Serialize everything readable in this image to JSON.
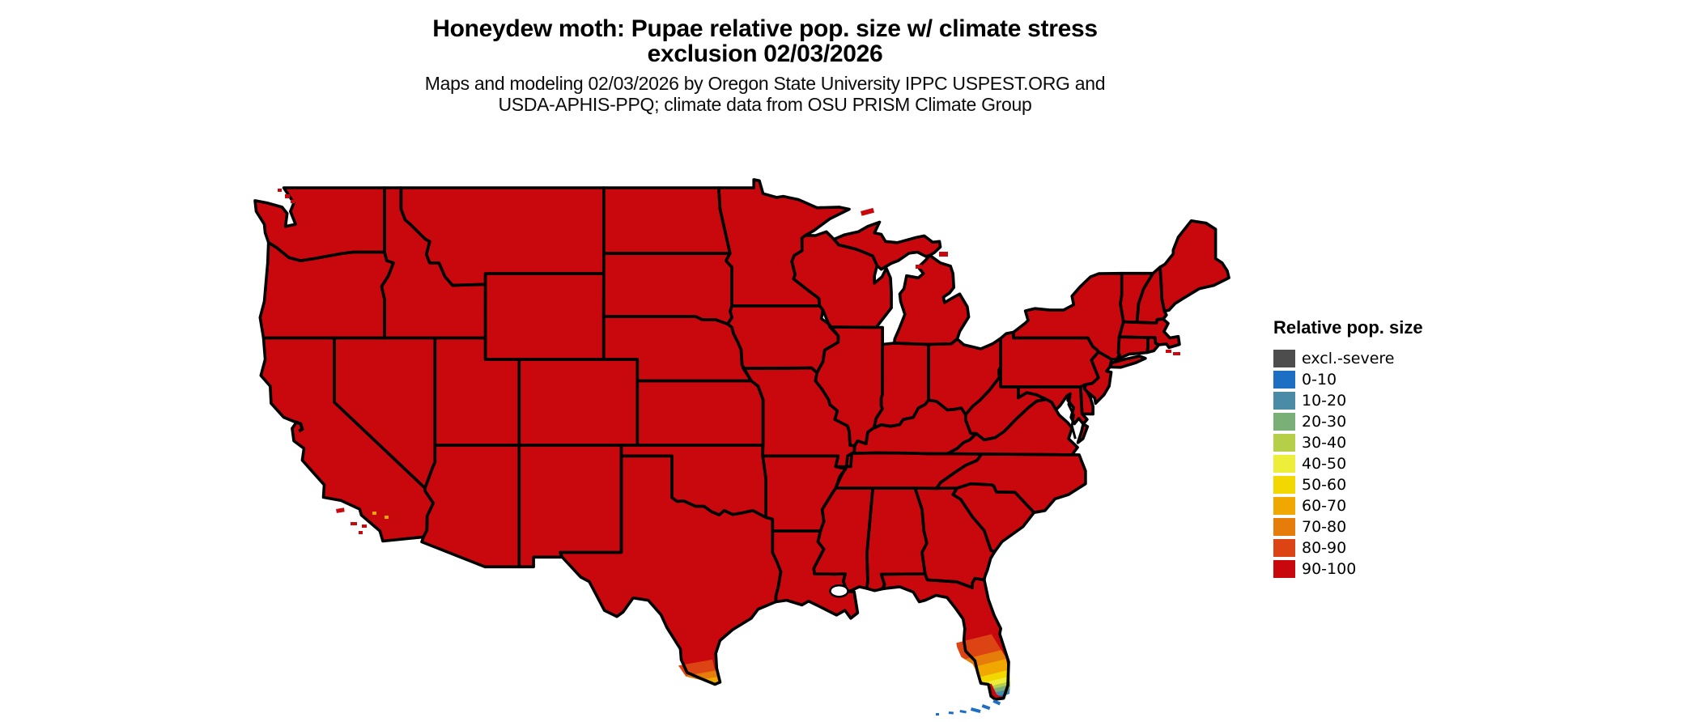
{
  "header": {
    "title_line1": "Honeydew moth: Pupae relative pop. size w/ climate stress",
    "title_line2": "exclusion 02/03/2026",
    "subtitle_line1": "Maps and modeling 02/03/2026 by Oregon State University IPPC USPEST.ORG and",
    "subtitle_line2": "USDA-APHIS-PPQ; climate data from OSU PRISM Climate Group"
  },
  "legend": {
    "title": "Relative pop. size",
    "items": [
      {
        "label": "excl.-severe",
        "color": "#4d4d4d"
      },
      {
        "label": "0-10",
        "color": "#1d6fc4"
      },
      {
        "label": "10-20",
        "color": "#4a8ba5"
      },
      {
        "label": "20-30",
        "color": "#7aaf78"
      },
      {
        "label": "30-40",
        "color": "#b6cf48"
      },
      {
        "label": "40-50",
        "color": "#edee3a"
      },
      {
        "label": "50-60",
        "color": "#f3d800"
      },
      {
        "label": "60-70",
        "color": "#f0a800"
      },
      {
        "label": "70-80",
        "color": "#e67d0a"
      },
      {
        "label": "80-90",
        "color": "#dc4414"
      },
      {
        "label": "90-100",
        "color": "#c9080e"
      }
    ]
  },
  "map": {
    "border_color": "#000000",
    "water_color": "#ffffff",
    "base_value_class": "90-100",
    "gradient_regions": [
      {
        "name": "south-florida",
        "classes": [
          "80-90",
          "70-80",
          "60-70",
          "50-60",
          "40-50",
          "30-40",
          "20-30",
          "10-20",
          "0-10"
        ]
      },
      {
        "name": "south-texas",
        "classes": [
          "80-90",
          "70-80",
          "60-70",
          "50-60",
          "30-40",
          "20-30"
        ]
      },
      {
        "name": "florida-keys",
        "classes": [
          "0-10"
        ]
      }
    ]
  }
}
